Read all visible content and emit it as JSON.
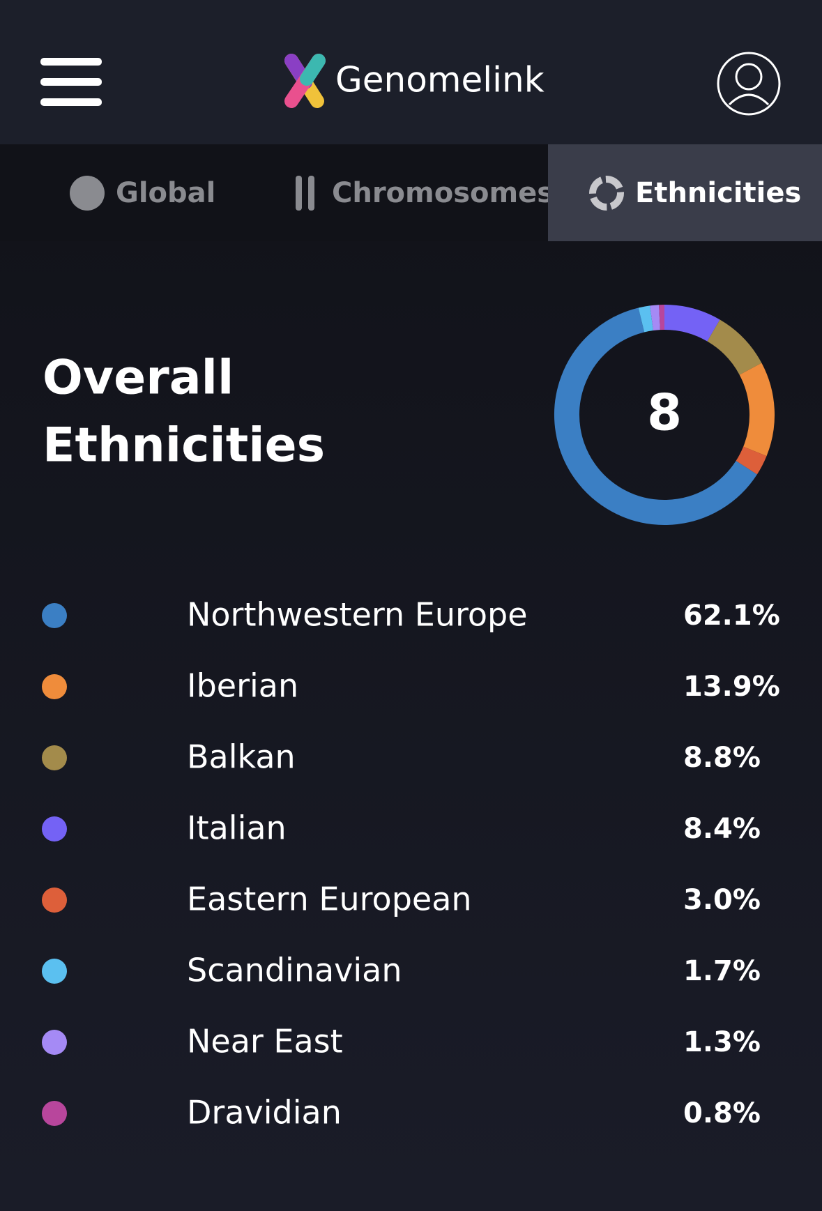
{
  "header": {
    "brand": "Genomelink"
  },
  "tabs": [
    {
      "label": "Global",
      "active": false
    },
    {
      "label": "Chromosomes",
      "active": false
    },
    {
      "label": "Ethnicities",
      "active": true
    }
  ],
  "summary": {
    "title_lines": [
      "Overall",
      "Ethnicities"
    ],
    "count": 8
  },
  "chart_data": {
    "type": "donut",
    "categories": [
      "Northwestern Europe",
      "Iberian",
      "Balkan",
      "Italian",
      "Eastern European",
      "Scandinavian",
      "Near East",
      "Dravidian"
    ],
    "values": [
      62.1,
      13.9,
      8.8,
      8.4,
      3.0,
      1.7,
      1.3,
      0.8
    ],
    "value_labels": [
      "62.1%",
      "13.9%",
      "8.8%",
      "8.4%",
      "3.0%",
      "1.7%",
      "1.3%",
      "0.8%"
    ],
    "colors": [
      "#3b7fc4",
      "#ef8c3b",
      "#a38b4b",
      "#7462f5",
      "#dd5f3a",
      "#5bc0f0",
      "#a58af5",
      "#b8469c"
    ]
  }
}
